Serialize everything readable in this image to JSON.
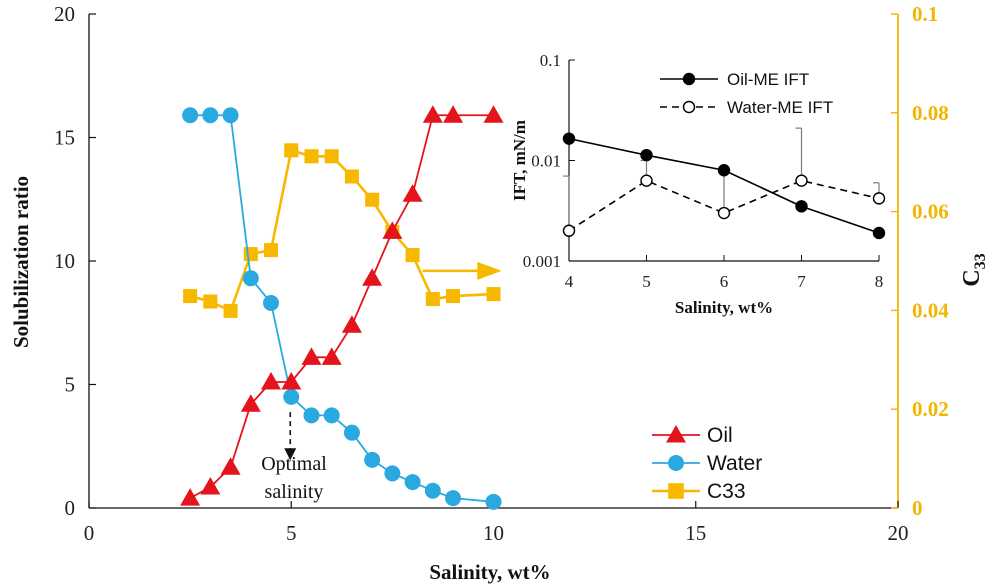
{
  "colors": {
    "oil": "#e3141b",
    "water": "#2aa9e0",
    "c33": "#f7b900",
    "right_axis": "#f2b600",
    "inset_line": "#000000",
    "error_bar": "#7a7a7a"
  },
  "chart_data": [
    {
      "type": "line",
      "title": "",
      "xlabel": "Salinity, wt%",
      "ylabel": "Solubilization ratio",
      "y2label_main": "C",
      "y2label_sub": "33",
      "xlim": [
        0,
        20
      ],
      "ylim": [
        0,
        20
      ],
      "y2lim": [
        0,
        0.1
      ],
      "grid": false,
      "x_ticks": [
        "0",
        "5",
        "10",
        "15",
        "20"
      ],
      "y_ticks": [
        "0",
        "5",
        "10",
        "15",
        "20"
      ],
      "y2_ticks": [
        "0",
        "0.02",
        "0.04",
        "0.06",
        "0.08",
        "0.1"
      ],
      "series": [
        {
          "name": "Oil",
          "marker": "triangle",
          "axis": "left",
          "x": [
            2.5,
            3,
            3.5,
            4,
            4.5,
            5,
            5.5,
            6,
            6.5,
            7,
            7.5,
            8,
            8.5,
            9,
            10
          ],
          "y": [
            0.4,
            0.85,
            1.65,
            4.2,
            5.1,
            5.1,
            6.1,
            6.1,
            7.4,
            9.3,
            11.2,
            12.7,
            15.9,
            15.9,
            15.9
          ]
        },
        {
          "name": "Water",
          "marker": "circle",
          "axis": "left",
          "x": [
            2.5,
            3,
            3.5,
            4,
            4.5,
            5,
            5.5,
            6,
            6.5,
            7,
            7.5,
            8,
            8.5,
            9,
            10
          ],
          "y": [
            15.9,
            15.9,
            15.9,
            9.3,
            8.3,
            4.5,
            3.75,
            3.75,
            3.05,
            1.95,
            1.4,
            1.05,
            0.7,
            0.4,
            0.25
          ]
        },
        {
          "name": "C33",
          "marker": "square",
          "axis": "right",
          "x": [
            2.5,
            3,
            3.5,
            4,
            4.5,
            5,
            5.5,
            6,
            6.5,
            7,
            7.5,
            8,
            8.5,
            9,
            10
          ],
          "y": [
            0.0429,
            0.0418,
            0.0399,
            0.0514,
            0.0522,
            0.0724,
            0.0712,
            0.0712,
            0.0671,
            0.0624,
            0.0559,
            0.0512,
            0.0423,
            0.0429,
            0.0433
          ]
        }
      ],
      "legend": [
        "Oil",
        "Water",
        "C33"
      ],
      "legend_position": "bottom-right",
      "annotations": {
        "optimal_line1": "Optimal",
        "optimal_line2": "salinity",
        "optimal_x": 5,
        "right_arrow_note": "C33 plotted on right axis"
      }
    },
    {
      "type": "line",
      "title": "",
      "xlabel": "Salinity, wt%",
      "ylabel": "IFT, mN/m",
      "yscale": "log",
      "xlim": [
        4,
        8
      ],
      "ylim": [
        0.001,
        0.1
      ],
      "grid": false,
      "x_ticks": [
        "4",
        "5",
        "6",
        "7",
        "8"
      ],
      "y_ticks": [
        "0.001",
        "0.01",
        "0.1"
      ],
      "series": [
        {
          "name": "Oil-ME IFT",
          "marker": "filled-circle",
          "style": "solid",
          "x": [
            4,
            5,
            6,
            7,
            8
          ],
          "y": [
            0.0165,
            0.0113,
            0.008,
            0.0035,
            0.0019
          ]
        },
        {
          "name": "Water-ME IFT",
          "marker": "open-circle",
          "style": "dashed",
          "x": [
            4,
            5,
            6,
            7,
            8
          ],
          "y": [
            0.002,
            0.0063,
            0.003,
            0.0063,
            0.0042
          ],
          "error_upper": [
            0.007,
            0.01,
            0.0077,
            0.021,
            0.006
          ]
        }
      ],
      "legend": [
        "Oil-ME IFT",
        "Water-ME IFT"
      ],
      "legend_position": "top-right"
    }
  ]
}
